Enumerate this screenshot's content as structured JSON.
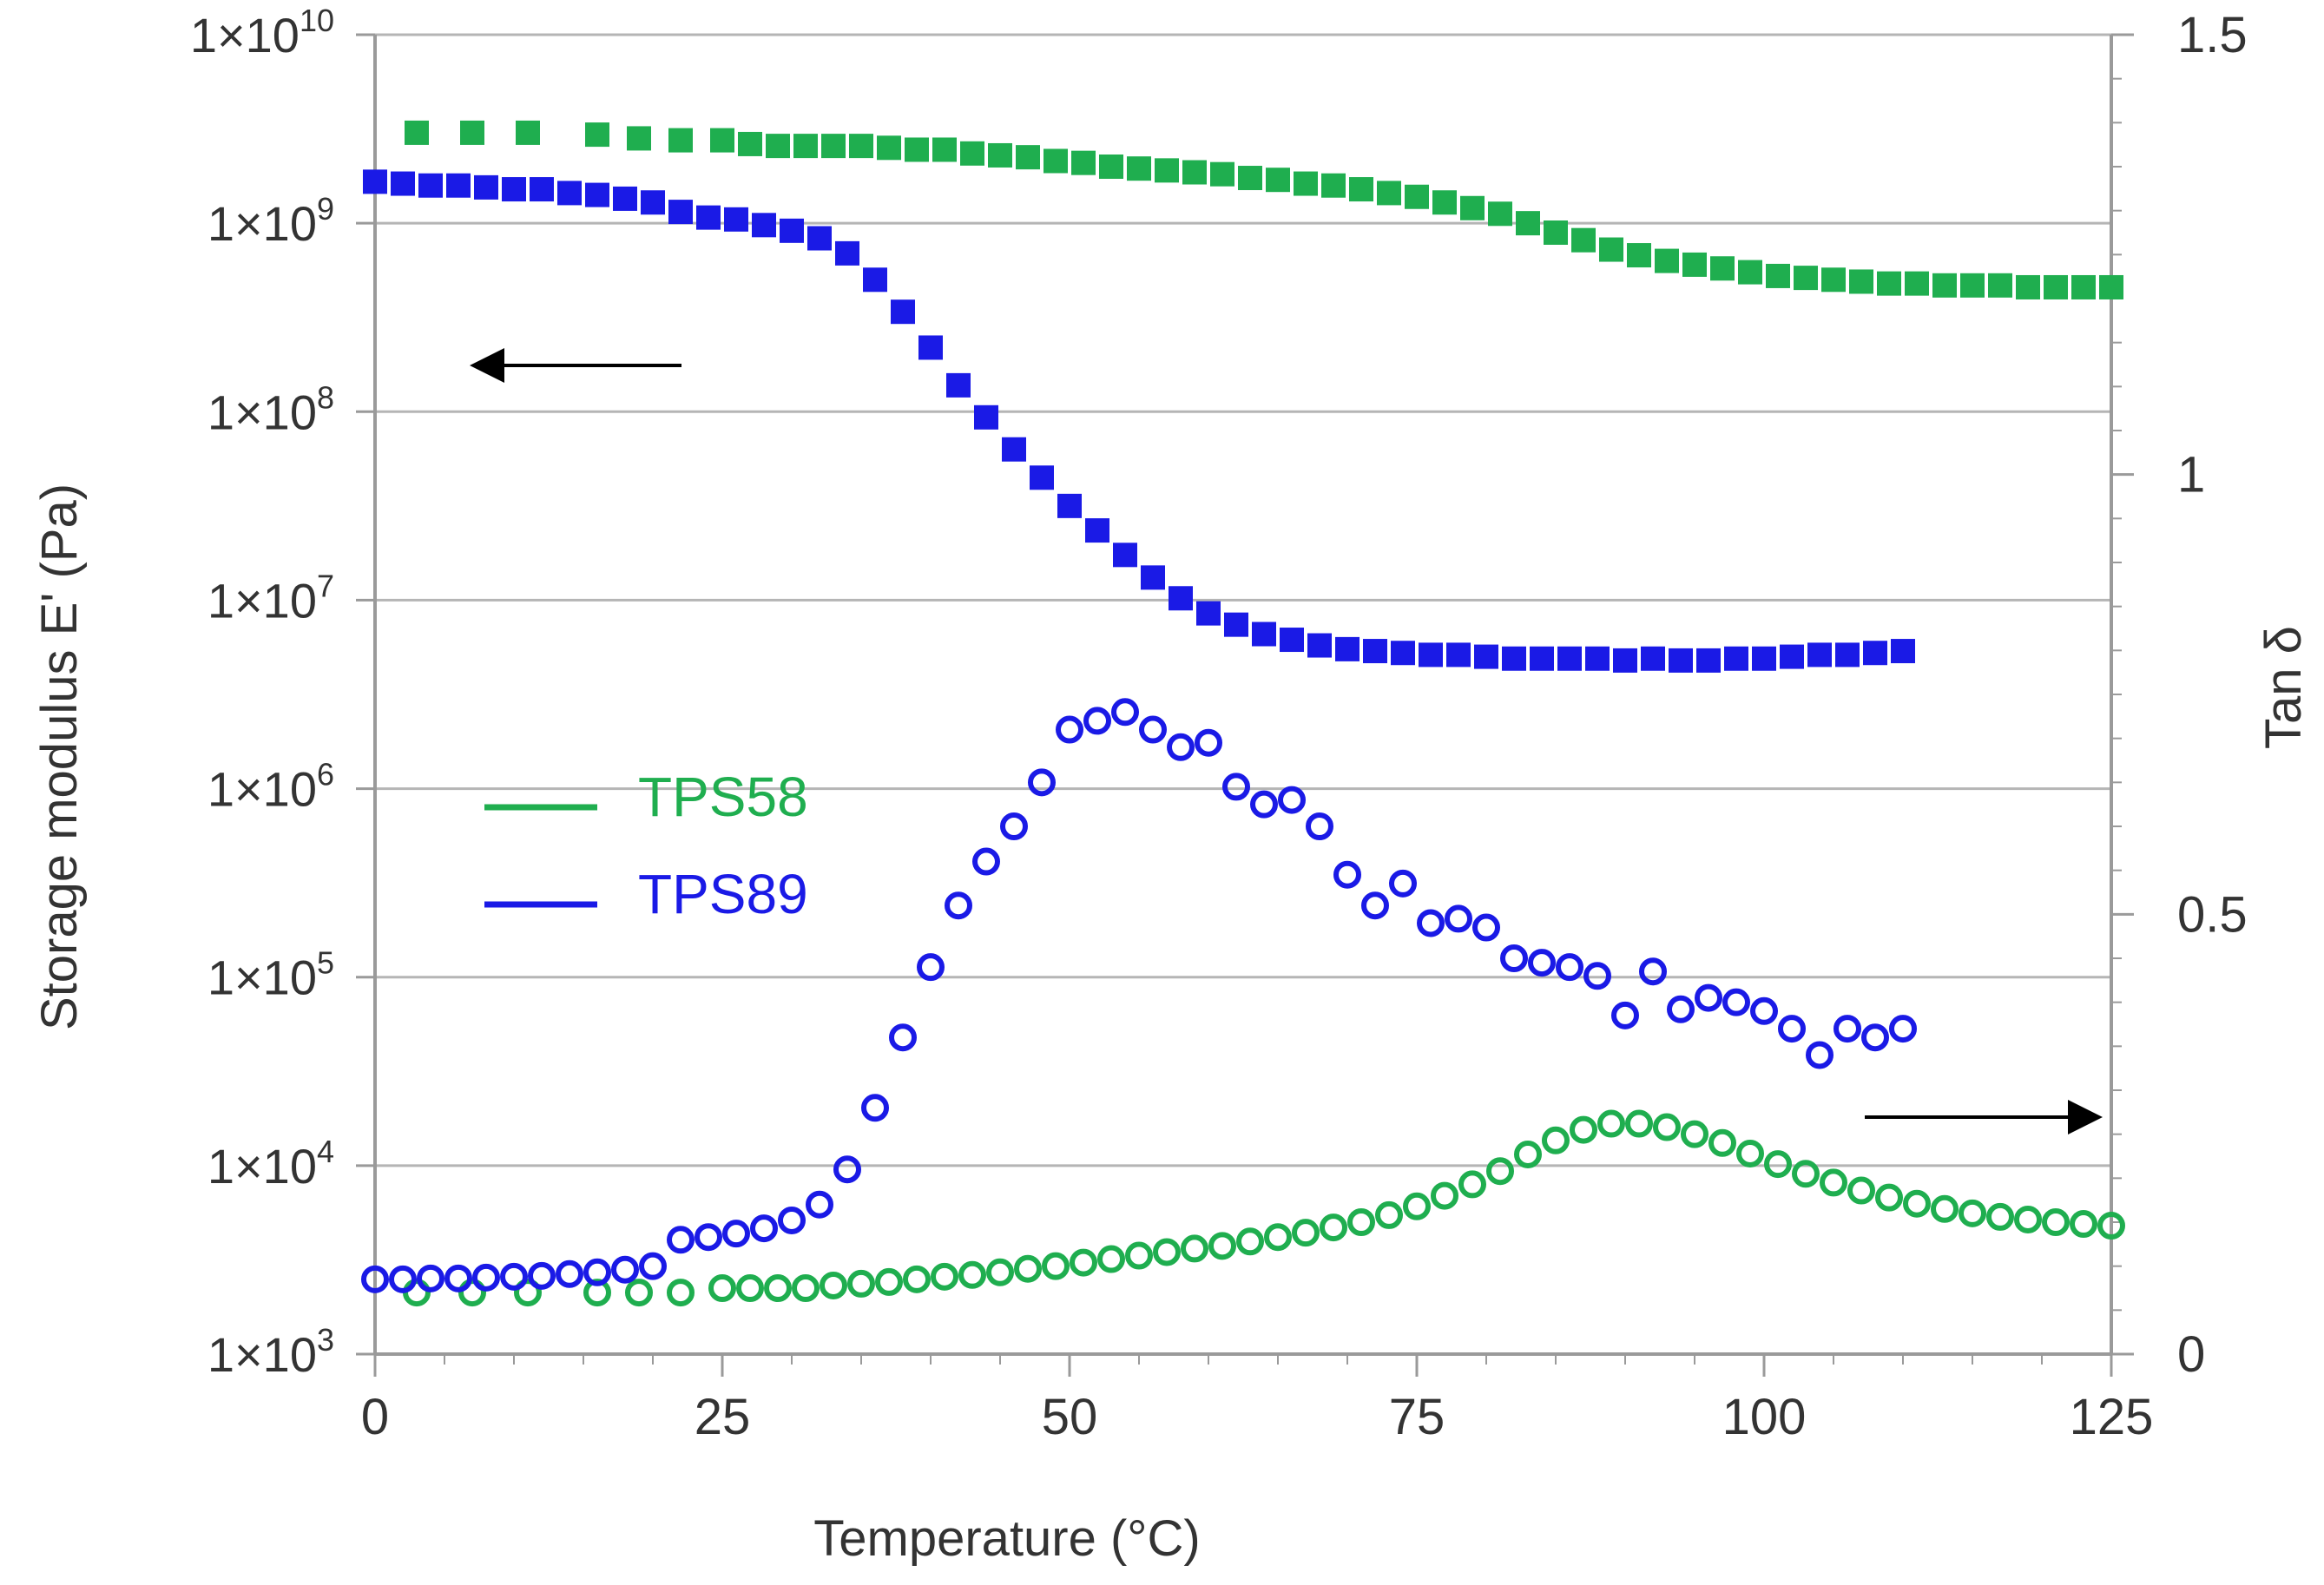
{
  "chart_data": {
    "type": "scatter",
    "title": "",
    "xlabel": "Temperature (°C)",
    "ylabel_left": "Storage modulus E' (Pa)",
    "ylabel_right": "Tan δ",
    "xlim": [
      0,
      125
    ],
    "x_ticks": [
      "0",
      "25",
      "50",
      "75",
      "100",
      "125"
    ],
    "y_left_log_exponents": [
      3,
      10
    ],
    "y_left_ticks": [
      {
        "base": "1×10",
        "exp": "3"
      },
      {
        "base": "1×10",
        "exp": "4"
      },
      {
        "base": "1×10",
        "exp": "5"
      },
      {
        "base": "1×10",
        "exp": "6"
      },
      {
        "base": "1×10",
        "exp": "7"
      },
      {
        "base": "1×10",
        "exp": "8"
      },
      {
        "base": "1×10",
        "exp": "9"
      },
      {
        "base": "1×10",
        "exp": "10"
      }
    ],
    "y_right_lim": [
      0,
      1.5
    ],
    "y_right_ticks": [
      "0",
      "0.5",
      "1",
      "1.5"
    ],
    "legend": [
      {
        "label": "TPS58",
        "color": "#1fae4f"
      },
      {
        "label": "TPS89",
        "color": "#1a1ae6"
      }
    ],
    "colors": {
      "TPS58": "#1fae4f",
      "TPS89": "#1a1ae6",
      "arrow": "#000000"
    },
    "annotations": [
      {
        "type": "arrow",
        "direction": "left",
        "meaning": "storage modulus uses left axis"
      },
      {
        "type": "arrow",
        "direction": "right",
        "meaning": "tan delta uses right axis"
      }
    ],
    "series": [
      {
        "name": "TPS58 E'",
        "axis": "left",
        "marker": "filled-square",
        "color": "#1fae4f",
        "x": [
          3,
          7,
          11,
          16,
          19,
          22,
          25,
          27,
          29,
          31,
          33,
          35,
          37,
          39,
          41,
          43,
          45,
          47,
          49,
          51,
          53,
          55,
          57,
          59,
          61,
          63,
          65,
          67,
          69,
          71,
          73,
          75,
          77,
          79,
          81,
          83,
          85,
          87,
          89,
          91,
          93,
          95,
          97,
          99,
          101,
          103,
          105,
          107,
          109,
          111,
          113,
          115,
          117,
          119,
          121,
          123,
          125
        ],
        "log10": [
          9.48,
          9.48,
          9.48,
          9.47,
          9.45,
          9.44,
          9.44,
          9.42,
          9.41,
          9.41,
          9.41,
          9.41,
          9.4,
          9.39,
          9.39,
          9.37,
          9.36,
          9.35,
          9.33,
          9.32,
          9.3,
          9.29,
          9.28,
          9.27,
          9.26,
          9.24,
          9.23,
          9.21,
          9.2,
          9.18,
          9.16,
          9.14,
          9.11,
          9.08,
          9.05,
          9.0,
          8.95,
          8.91,
          8.86,
          8.83,
          8.8,
          8.78,
          8.76,
          8.74,
          8.72,
          8.71,
          8.7,
          8.69,
          8.68,
          8.68,
          8.67,
          8.67,
          8.67,
          8.66,
          8.66,
          8.66,
          8.66
        ]
      },
      {
        "name": "TPS89 E'",
        "axis": "left",
        "marker": "filled-square",
        "color": "#1a1ae6",
        "x": [
          0,
          2,
          4,
          6,
          8,
          10,
          12,
          14,
          16,
          18,
          20,
          22,
          24,
          26,
          28,
          30,
          32,
          34,
          36,
          38,
          40,
          42,
          44,
          46,
          48,
          50,
          52,
          54,
          56,
          58,
          60,
          62,
          64,
          66,
          68,
          70,
          72,
          74,
          76,
          78,
          80,
          82,
          84,
          86,
          88,
          90,
          92,
          94,
          96,
          98,
          100,
          102,
          104,
          106,
          108,
          110
        ],
        "log10": [
          9.22,
          9.21,
          9.2,
          9.2,
          9.19,
          9.18,
          9.18,
          9.16,
          9.15,
          9.13,
          9.11,
          9.06,
          9.03,
          9.02,
          8.99,
          8.96,
          8.92,
          8.84,
          8.7,
          8.53,
          8.34,
          8.14,
          7.97,
          7.8,
          7.65,
          7.5,
          7.37,
          7.24,
          7.12,
          7.01,
          6.93,
          6.87,
          6.82,
          6.79,
          6.76,
          6.74,
          6.73,
          6.72,
          6.71,
          6.71,
          6.7,
          6.69,
          6.69,
          6.69,
          6.69,
          6.68,
          6.69,
          6.68,
          6.68,
          6.69,
          6.69,
          6.7,
          6.71,
          6.71,
          6.72,
          6.73
        ]
      },
      {
        "name": "TPS58 tan δ",
        "axis": "right",
        "marker": "open-circle",
        "color": "#1fae4f",
        "x": [
          3,
          7,
          11,
          16,
          19,
          22,
          25,
          27,
          29,
          31,
          33,
          35,
          37,
          39,
          41,
          43,
          45,
          47,
          49,
          51,
          53,
          55,
          57,
          59,
          61,
          63,
          65,
          67,
          69,
          71,
          73,
          75,
          77,
          79,
          81,
          83,
          85,
          87,
          89,
          91,
          93,
          95,
          97,
          99,
          101,
          103,
          105,
          107,
          109,
          111,
          113,
          115,
          117,
          119,
          121,
          123,
          125
        ],
        "y": [
          0.07,
          0.07,
          0.07,
          0.07,
          0.07,
          0.07,
          0.075,
          0.075,
          0.075,
          0.075,
          0.078,
          0.08,
          0.082,
          0.085,
          0.088,
          0.09,
          0.093,
          0.097,
          0.1,
          0.104,
          0.108,
          0.112,
          0.116,
          0.12,
          0.123,
          0.128,
          0.133,
          0.138,
          0.144,
          0.15,
          0.158,
          0.168,
          0.18,
          0.193,
          0.208,
          0.227,
          0.243,
          0.255,
          0.262,
          0.262,
          0.258,
          0.25,
          0.24,
          0.228,
          0.216,
          0.205,
          0.195,
          0.186,
          0.178,
          0.171,
          0.165,
          0.16,
          0.156,
          0.153,
          0.15,
          0.148,
          0.146
        ]
      },
      {
        "name": "TPS89 tan δ",
        "axis": "right",
        "marker": "open-circle",
        "color": "#1a1ae6",
        "x": [
          0,
          2,
          4,
          6,
          8,
          10,
          12,
          14,
          16,
          18,
          20,
          22,
          24,
          26,
          28,
          30,
          32,
          34,
          36,
          38,
          40,
          42,
          44,
          46,
          48,
          50,
          52,
          54,
          56,
          58,
          60,
          62,
          64,
          66,
          68,
          70,
          72,
          74,
          76,
          78,
          80,
          82,
          84,
          86,
          88,
          90,
          92,
          94,
          96,
          98,
          100,
          102,
          104,
          106,
          108,
          110
        ],
        "y": [
          0.085,
          0.085,
          0.086,
          0.086,
          0.087,
          0.088,
          0.089,
          0.091,
          0.093,
          0.096,
          0.1,
          0.13,
          0.133,
          0.137,
          0.143,
          0.152,
          0.17,
          0.21,
          0.28,
          0.36,
          0.44,
          0.51,
          0.56,
          0.6,
          0.65,
          0.71,
          0.72,
          0.73,
          0.71,
          0.69,
          0.695,
          0.645,
          0.625,
          0.63,
          0.6,
          0.545,
          0.51,
          0.535,
          0.49,
          0.495,
          0.485,
          0.45,
          0.445,
          0.44,
          0.43,
          0.385,
          0.435,
          0.392,
          0.405,
          0.4,
          0.39,
          0.37,
          0.34,
          0.37,
          0.36,
          0.37
        ]
      }
    ]
  }
}
